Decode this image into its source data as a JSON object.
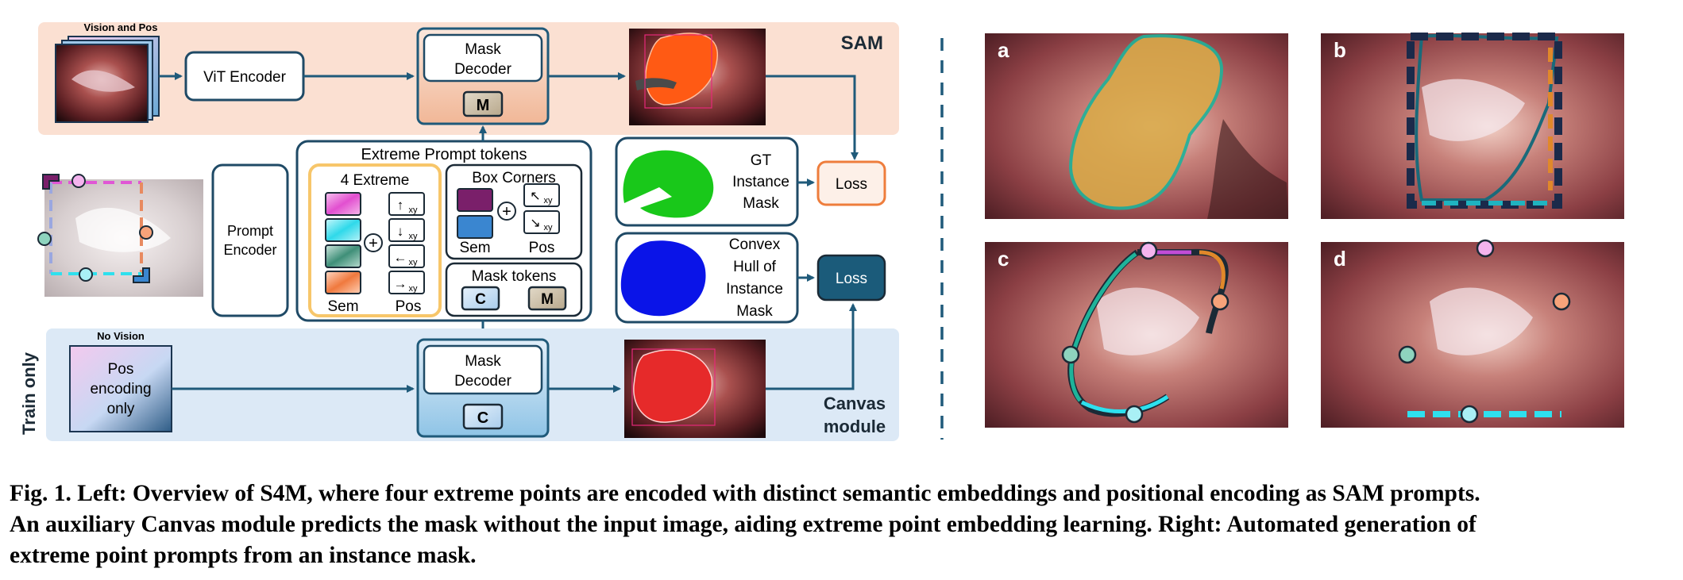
{
  "diagram": {
    "sam_label": "SAM",
    "vision_pos_label": "Vision and Pos",
    "vit_encoder": "ViT Encoder",
    "mask_decoder_title": [
      "Mask",
      "Decoder"
    ],
    "token_m": "M",
    "token_c": "C",
    "extreme_prompt_title": "Extreme Prompt tokens",
    "four_extreme_label": "4 Extreme",
    "box_corners_label": "Box Corners",
    "sem_label": "Sem",
    "pos_label": "Pos",
    "mask_tokens_label": "Mask tokens",
    "prompt_encoder": [
      "Prompt",
      "Encoder"
    ],
    "gt_mask_label": [
      "GT",
      "Instance",
      "Mask"
    ],
    "convex_hull_label": [
      "Convex",
      "Hull of",
      "Instance",
      "Mask"
    ],
    "loss_label": "Loss",
    "no_vision_label": "No Vision",
    "pos_encoding_only": [
      "Pos",
      "encoding",
      "only"
    ],
    "train_only": "Train only",
    "canvas_module": [
      "Canvas",
      "module"
    ],
    "pos_xy": "xy",
    "arrow_glyphs": [
      "↑",
      "↓",
      "←",
      "→",
      "↖",
      "↘"
    ],
    "panel_letters": [
      "a",
      "b",
      "c",
      "d"
    ],
    "colors": {
      "sam_band": "#fbe0d2",
      "canvas_band": "#dce9f6",
      "navy": "#1c3f5e",
      "teal_line": "#2e6a8a",
      "loss_orange": "#ee7d3c",
      "loss_dark": "#1b5b7a",
      "gt_green": "#19c81a",
      "hull_blue": "#0a14e8",
      "pred_orange": "#ff5a14",
      "pred_red": "#e62a2a"
    }
  },
  "caption": {
    "lines": [
      "Fig. 1. Left: Overview of S4M, where four extreme points are encoded with distinct semantic embeddings and positional encoding as SAM prompts.",
      "An auxiliary Canvas module predicts the mask without the input image, aiding extreme point embedding learning. Right: Automated generation of",
      "extreme point prompts from an instance mask."
    ]
  }
}
